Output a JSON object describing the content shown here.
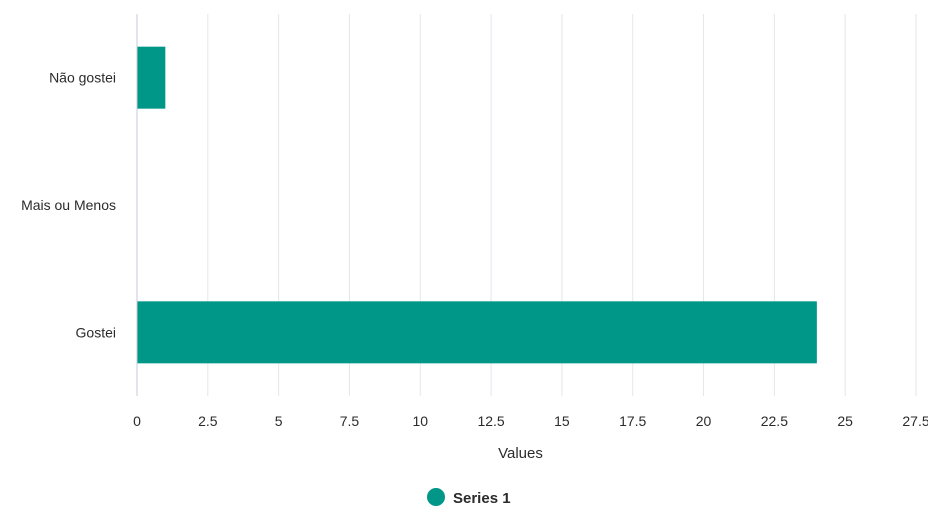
{
  "chart_data": {
    "type": "bar",
    "orientation": "horizontal",
    "categories": [
      "Não gostei",
      "Mais ou Menos",
      "Gostei"
    ],
    "series": [
      {
        "name": "Series 1",
        "values": [
          1,
          0,
          24
        ]
      }
    ],
    "xlabel": "Values",
    "ylabel": "",
    "xlim": [
      0,
      27.5
    ],
    "xticks": [
      "0",
      "2.5",
      "5",
      "7.5",
      "10",
      "12.5",
      "15",
      "17.5",
      "20",
      "22.5",
      "25",
      "27.5"
    ],
    "grid": true,
    "legend_position": "bottom",
    "colors": {
      "series": "#009688",
      "grid": "#e3e6ee",
      "axis": "#c5cbd8",
      "text": "#2b2b2b"
    }
  }
}
